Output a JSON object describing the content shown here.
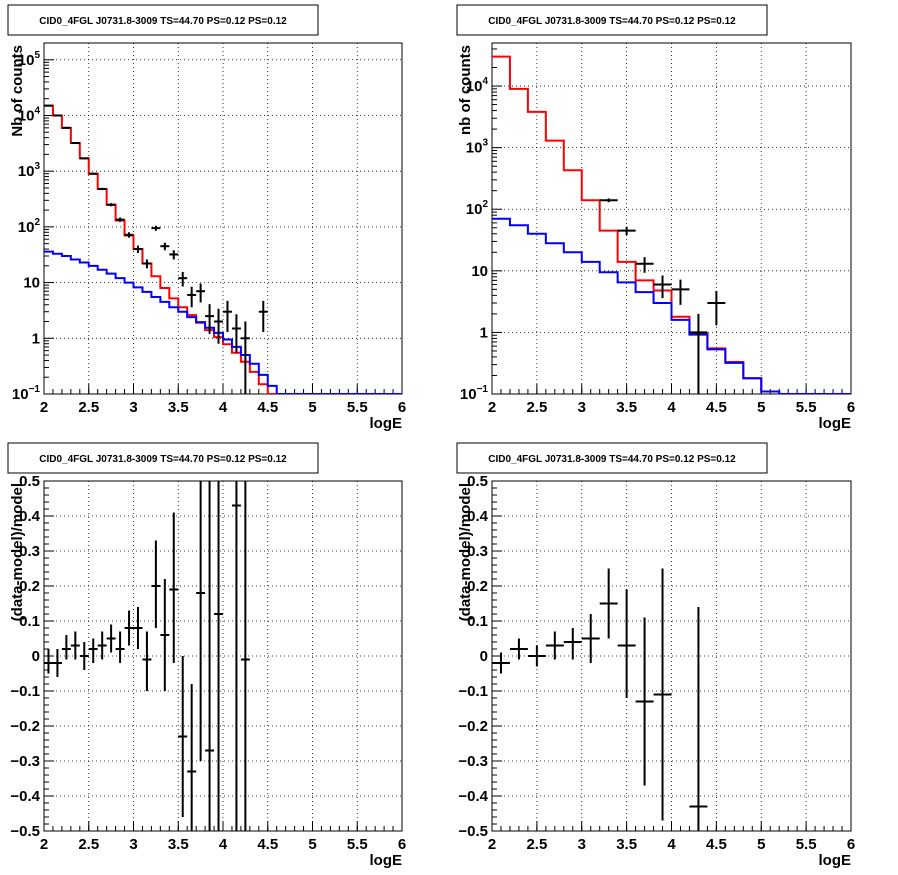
{
  "chart_data": [
    {
      "type": "line",
      "panel": "top-left",
      "title": "CID0_4FGL J0731.8-3009 TS=44.70 PS=0.12 PS=0.12",
      "xlabel": "logE",
      "ylabel": "Nb of counts",
      "xlim": [
        2,
        6
      ],
      "ylim": [
        0.1,
        200000
      ],
      "ylog": true,
      "grid": true,
      "x_ticks": [
        {
          "v": 2,
          "t": "2"
        },
        {
          "v": 2.5,
          "t": "2.5"
        },
        {
          "v": 3,
          "t": "3"
        },
        {
          "v": 3.5,
          "t": "3.5"
        },
        {
          "v": 4,
          "t": "4"
        },
        {
          "v": 4.5,
          "t": "4.5"
        },
        {
          "v": 5,
          "t": "5"
        },
        {
          "v": 5.5,
          "t": "5.5"
        },
        {
          "v": 6,
          "t": "6"
        }
      ],
      "y_ticks": [
        {
          "v": 0.1,
          "base": "10",
          "sup": "−1"
        },
        {
          "v": 1,
          "base": "1",
          "sup": ""
        },
        {
          "v": 10,
          "base": "10",
          "sup": ""
        },
        {
          "v": 100,
          "base": "10",
          "sup": "2"
        },
        {
          "v": 1000,
          "base": "10",
          "sup": "3"
        },
        {
          "v": 10000,
          "base": "10",
          "sup": "4"
        },
        {
          "v": 100000,
          "base": "10",
          "sup": "5"
        }
      ],
      "bin_edges": [
        2.0,
        2.1,
        2.2,
        2.3,
        2.4,
        2.5,
        2.6,
        2.7,
        2.8,
        2.9,
        3.0,
        3.1,
        3.2,
        3.3,
        3.4,
        3.5,
        3.6,
        3.7,
        3.8,
        3.9,
        4.0,
        4.1,
        4.2,
        4.3,
        4.4,
        4.5,
        4.6,
        4.7,
        4.8,
        4.9,
        5.0,
        5.1,
        5.2,
        5.3,
        5.4,
        5.5,
        5.6,
        5.7,
        5.8,
        5.9,
        6.0
      ],
      "series": [
        {
          "color": "#ff0000",
          "kind": "step",
          "values": [
            15000,
            10000,
            6000,
            3200,
            1700,
            900,
            480,
            250,
            130,
            70,
            40,
            22,
            13,
            8,
            5.2,
            3.6,
            2.6,
            1.9,
            1.4,
            1.05,
            0.78,
            0.55,
            0.38,
            0.25,
            0.15,
            0.1,
            0.1,
            0.1,
            0.1,
            0.1,
            0.1,
            0.1,
            0.1,
            0.1,
            0.1,
            0.1,
            0.1,
            0.1,
            0.1,
            0.1
          ]
        },
        {
          "color": "#0000ff",
          "kind": "step",
          "values": [
            36,
            33,
            30,
            26,
            23,
            20,
            17,
            14.5,
            12,
            10,
            8.2,
            6.8,
            5.5,
            4.5,
            3.6,
            3.0,
            2.4,
            1.95,
            1.55,
            1.25,
            0.95,
            0.7,
            0.5,
            0.35,
            0.22,
            0.14,
            0.1,
            0.1,
            0.1,
            0.1,
            0.1,
            0.1,
            0.1,
            0.1,
            0.1,
            0.1,
            0.1,
            0.1,
            0.1,
            0.1
          ]
        },
        {
          "color": "#000000",
          "kind": "points",
          "points": [
            {
              "x": 2.05,
              "y": 15000,
              "lo": 14900,
              "hi": 15100
            },
            {
              "x": 2.15,
              "y": 10000,
              "lo": 9900,
              "hi": 10100
            },
            {
              "x": 2.25,
              "y": 6000,
              "lo": 5920,
              "hi": 6080
            },
            {
              "x": 2.35,
              "y": 3200,
              "lo": 3140,
              "hi": 3260
            },
            {
              "x": 2.45,
              "y": 1700,
              "lo": 1660,
              "hi": 1740
            },
            {
              "x": 2.55,
              "y": 900,
              "lo": 870,
              "hi": 930
            },
            {
              "x": 2.65,
              "y": 480,
              "lo": 458,
              "hi": 502
            },
            {
              "x": 2.75,
              "y": 250,
              "lo": 234,
              "hi": 266
            },
            {
              "x": 2.85,
              "y": 135,
              "lo": 123,
              "hi": 147
            },
            {
              "x": 2.95,
              "y": 72,
              "lo": 64,
              "hi": 80
            },
            {
              "x": 3.05,
              "y": 40,
              "lo": 34,
              "hi": 46
            },
            {
              "x": 3.15,
              "y": 22,
              "lo": 18,
              "hi": 26
            },
            {
              "x": 3.25,
              "y": 95,
              "lo": 85,
              "hi": 105
            },
            {
              "x": 3.35,
              "y": 45,
              "lo": 38,
              "hi": 52
            },
            {
              "x": 3.45,
              "y": 32,
              "lo": 26,
              "hi": 38
            },
            {
              "x": 3.55,
              "y": 12,
              "lo": 8.5,
              "hi": 15.5
            },
            {
              "x": 3.65,
              "y": 6,
              "lo": 3.6,
              "hi": 8.4
            },
            {
              "x": 3.75,
              "y": 7,
              "lo": 4.4,
              "hi": 9.6
            },
            {
              "x": 3.85,
              "y": 2.5,
              "lo": 1.2,
              "hi": 4.1
            },
            {
              "x": 3.95,
              "y": 2,
              "lo": 0.8,
              "hi": 3.4
            },
            {
              "x": 4.05,
              "y": 3,
              "lo": 1.3,
              "hi": 4.7
            },
            {
              "x": 4.15,
              "y": 1.5,
              "lo": 0.55,
              "hi": 2.7
            },
            {
              "x": 4.25,
              "y": 1,
              "lo": 0.1,
              "hi": 2.0
            },
            {
              "x": 4.45,
              "y": 3,
              "lo": 1.3,
              "hi": 4.7
            }
          ]
        }
      ]
    },
    {
      "type": "line",
      "panel": "top-right",
      "title": "CID0_4FGL J0731.8-3009 TS=44.70 PS=0.12 PS=0.12",
      "xlabel": "logE",
      "ylabel": "nb of counts",
      "xlim": [
        2,
        6
      ],
      "ylim": [
        0.1,
        50000
      ],
      "ylog": true,
      "grid": true,
      "x_ticks": [
        {
          "v": 2,
          "t": "2"
        },
        {
          "v": 2.5,
          "t": "2.5"
        },
        {
          "v": 3,
          "t": "3"
        },
        {
          "v": 3.5,
          "t": "3.5"
        },
        {
          "v": 4,
          "t": "4"
        },
        {
          "v": 4.5,
          "t": "4.5"
        },
        {
          "v": 5,
          "t": "5"
        },
        {
          "v": 5.5,
          "t": "5.5"
        },
        {
          "v": 6,
          "t": "6"
        }
      ],
      "y_ticks": [
        {
          "v": 0.1,
          "base": "10",
          "sup": "−1"
        },
        {
          "v": 1,
          "base": "1",
          "sup": ""
        },
        {
          "v": 10,
          "base": "10",
          "sup": ""
        },
        {
          "v": 100,
          "base": "10",
          "sup": "2"
        },
        {
          "v": 1000,
          "base": "10",
          "sup": "3"
        },
        {
          "v": 10000,
          "base": "10",
          "sup": "4"
        }
      ],
      "bin_edges": [
        2.0,
        2.2,
        2.4,
        2.6,
        2.8,
        3.0,
        3.2,
        3.4,
        3.6,
        3.8,
        4.0,
        4.2,
        4.4,
        4.6,
        4.8,
        5.0,
        5.2,
        5.4,
        5.6,
        5.8,
        6.0
      ],
      "series": [
        {
          "color": "#ff0000",
          "kind": "step",
          "values": [
            30000,
            9000,
            3800,
            1300,
            430,
            140,
            45,
            14,
            7,
            4.8,
            1.8,
            0.95,
            0.55,
            0.33,
            0.18,
            0.11,
            0.1,
            0.1,
            0.1,
            0.1
          ]
        },
        {
          "color": "#0000ff",
          "kind": "step",
          "values": [
            70,
            55,
            40,
            28,
            20,
            14,
            9.5,
            6.5,
            4.5,
            3.0,
            1.6,
            0.92,
            0.53,
            0.32,
            0.18,
            0.11,
            0.1,
            0.1,
            0.1,
            0.1
          ]
        },
        {
          "color": "#000000",
          "kind": "points",
          "points": [
            {
              "x": 3.3,
              "y": 140,
              "lo": 130,
              "hi": 150
            },
            {
              "x": 3.5,
              "y": 45,
              "lo": 38,
              "hi": 52
            },
            {
              "x": 3.7,
              "y": 13,
              "lo": 9.3,
              "hi": 16.7
            },
            {
              "x": 3.9,
              "y": 6,
              "lo": 3.6,
              "hi": 8.4
            },
            {
              "x": 4.1,
              "y": 5,
              "lo": 2.8,
              "hi": 7.2
            },
            {
              "x": 4.3,
              "y": 1,
              "lo": 0.1,
              "hi": 2.0
            },
            {
              "x": 4.5,
              "y": 3,
              "lo": 1.3,
              "hi": 4.7
            }
          ]
        }
      ]
    },
    {
      "type": "scatter",
      "panel": "bottom-left",
      "title": "CID0_4FGL J0731.8-3009 TS=44.70 PS=0.12 PS=0.12",
      "xlabel": "logE",
      "ylabel": "(data-model)/model",
      "xlim": [
        2,
        6
      ],
      "ylim": [
        -0.5,
        0.5
      ],
      "ylog": false,
      "grid": true,
      "x_ticks": [
        {
          "v": 2,
          "t": "2"
        },
        {
          "v": 2.5,
          "t": "2.5"
        },
        {
          "v": 3,
          "t": "3"
        },
        {
          "v": 3.5,
          "t": "3.5"
        },
        {
          "v": 4,
          "t": "4"
        },
        {
          "v": 4.5,
          "t": "4.5"
        },
        {
          "v": 5,
          "t": "5"
        },
        {
          "v": 5.5,
          "t": "5.5"
        },
        {
          "v": 6,
          "t": "6"
        }
      ],
      "y_ticks": [
        {
          "v": -0.5,
          "t": "−0.5"
        },
        {
          "v": -0.4,
          "t": "−0.4"
        },
        {
          "v": -0.3,
          "t": "−0.3"
        },
        {
          "v": -0.2,
          "t": "−0.2"
        },
        {
          "v": -0.1,
          "t": "−0.1"
        },
        {
          "v": 0,
          "t": "0"
        },
        {
          "v": 0.1,
          "t": "0.1"
        },
        {
          "v": 0.2,
          "t": "0.2"
        },
        {
          "v": 0.3,
          "t": "0.3"
        },
        {
          "v": 0.4,
          "t": "0.4"
        },
        {
          "v": 0.5,
          "t": "0.5"
        }
      ],
      "half_width": 0.05,
      "series": [
        {
          "color": "#000000",
          "kind": "points",
          "points": [
            {
              "x": 2.05,
              "y": -0.02,
              "lo": -0.05,
              "hi": 0.02
            },
            {
              "x": 2.15,
              "y": -0.02,
              "lo": -0.06,
              "hi": 0.02
            },
            {
              "x": 2.25,
              "y": 0.02,
              "lo": -0.01,
              "hi": 0.06
            },
            {
              "x": 2.35,
              "y": 0.03,
              "lo": -0.01,
              "hi": 0.07
            },
            {
              "x": 2.45,
              "y": 0.0,
              "lo": -0.04,
              "hi": 0.04
            },
            {
              "x": 2.55,
              "y": 0.02,
              "lo": -0.02,
              "hi": 0.05
            },
            {
              "x": 2.65,
              "y": 0.03,
              "lo": -0.01,
              "hi": 0.07
            },
            {
              "x": 2.75,
              "y": 0.05,
              "lo": 0.01,
              "hi": 0.09
            },
            {
              "x": 2.85,
              "y": 0.02,
              "lo": -0.02,
              "hi": 0.07
            },
            {
              "x": 2.95,
              "y": 0.08,
              "lo": 0.03,
              "hi": 0.13
            },
            {
              "x": 3.05,
              "y": 0.08,
              "lo": 0.02,
              "hi": 0.14
            },
            {
              "x": 3.15,
              "y": -0.01,
              "lo": -0.1,
              "hi": 0.07
            },
            {
              "x": 3.25,
              "y": 0.2,
              "lo": 0.08,
              "hi": 0.33
            },
            {
              "x": 3.35,
              "y": 0.06,
              "lo": -0.1,
              "hi": 0.22
            },
            {
              "x": 3.45,
              "y": 0.19,
              "lo": -0.02,
              "hi": 0.41
            },
            {
              "x": 3.55,
              "y": -0.23,
              "lo": -0.46,
              "hi": 0.0
            },
            {
              "x": 3.65,
              "y": -0.33,
              "lo": -0.5,
              "hi": -0.08
            },
            {
              "x": 3.75,
              "y": 0.18,
              "lo": -0.3,
              "hi": 0.5
            },
            {
              "x": 3.85,
              "y": -0.27,
              "lo": -0.5,
              "hi": 0.5
            },
            {
              "x": 3.95,
              "y": 0.12,
              "lo": -0.5,
              "hi": 0.5
            },
            {
              "x": 4.15,
              "y": 0.43,
              "lo": -0.5,
              "hi": 0.5
            },
            {
              "x": 4.25,
              "y": -0.01,
              "lo": -0.5,
              "hi": 0.5
            }
          ]
        }
      ]
    },
    {
      "type": "scatter",
      "panel": "bottom-right",
      "title": "CID0_4FGL J0731.8-3009 TS=44.70 PS=0.12 PS=0.12",
      "xlabel": "logE",
      "ylabel": "(data-model)/model",
      "xlim": [
        2,
        6
      ],
      "ylim": [
        -0.5,
        0.5
      ],
      "ylog": false,
      "grid": true,
      "x_ticks": [
        {
          "v": 2,
          "t": "2"
        },
        {
          "v": 2.5,
          "t": "2.5"
        },
        {
          "v": 3,
          "t": "3"
        },
        {
          "v": 3.5,
          "t": "3.5"
        },
        {
          "v": 4,
          "t": "4"
        },
        {
          "v": 4.5,
          "t": "4.5"
        },
        {
          "v": 5,
          "t": "5"
        },
        {
          "v": 5.5,
          "t": "5.5"
        },
        {
          "v": 6,
          "t": "6"
        }
      ],
      "y_ticks": [
        {
          "v": -0.5,
          "t": "−0.5"
        },
        {
          "v": -0.4,
          "t": "−0.4"
        },
        {
          "v": -0.3,
          "t": "−0.3"
        },
        {
          "v": -0.2,
          "t": "−0.2"
        },
        {
          "v": -0.1,
          "t": "−0.1"
        },
        {
          "v": 0,
          "t": "0"
        },
        {
          "v": 0.1,
          "t": "0.1"
        },
        {
          "v": 0.2,
          "t": "0.2"
        },
        {
          "v": 0.3,
          "t": "0.3"
        },
        {
          "v": 0.4,
          "t": "0.4"
        },
        {
          "v": 0.5,
          "t": "0.5"
        }
      ],
      "half_width": 0.1,
      "series": [
        {
          "color": "#000000",
          "kind": "points",
          "points": [
            {
              "x": 2.1,
              "y": -0.02,
              "lo": -0.05,
              "hi": 0.01
            },
            {
              "x": 2.3,
              "y": 0.02,
              "lo": -0.01,
              "hi": 0.05
            },
            {
              "x": 2.5,
              "y": 0.0,
              "lo": -0.03,
              "hi": 0.03
            },
            {
              "x": 2.7,
              "y": 0.03,
              "lo": -0.01,
              "hi": 0.07
            },
            {
              "x": 2.9,
              "y": 0.04,
              "lo": -0.01,
              "hi": 0.08
            },
            {
              "x": 3.1,
              "y": 0.05,
              "lo": -0.02,
              "hi": 0.12
            },
            {
              "x": 3.3,
              "y": 0.15,
              "lo": 0.05,
              "hi": 0.25
            },
            {
              "x": 3.5,
              "y": 0.03,
              "lo": -0.12,
              "hi": 0.19
            },
            {
              "x": 3.7,
              "y": -0.13,
              "lo": -0.37,
              "hi": 0.11
            },
            {
              "x": 3.9,
              "y": -0.11,
              "lo": -0.47,
              "hi": 0.25
            },
            {
              "x": 4.3,
              "y": -0.43,
              "lo": -0.5,
              "hi": 0.14
            }
          ]
        }
      ]
    }
  ]
}
